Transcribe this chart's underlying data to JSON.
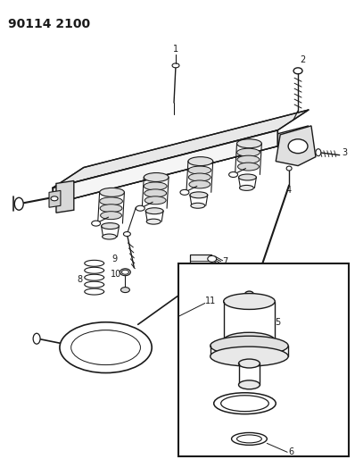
{
  "title": "90114 2100",
  "bg_color": "#ffffff",
  "line_color": "#1a1a1a",
  "fig_width": 3.98,
  "fig_height": 5.33,
  "dpi": 100
}
